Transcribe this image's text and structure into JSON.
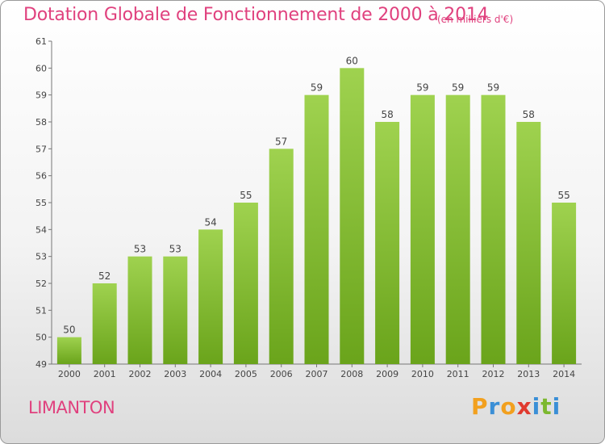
{
  "header": {
    "title": "Dotation Globale de Fonctionnement de 2000 à 2014",
    "unit": "(en milliers d'€)"
  },
  "footer": {
    "commune": "LIMANTON",
    "logo": "Proxiti"
  },
  "colors": {
    "title": "#e0417e",
    "bar_top": "#9fd24f",
    "bar_bottom": "#6aa41b",
    "axis": "#666666",
    "text": "#333333"
  },
  "chart_data": {
    "type": "bar",
    "categories": [
      "2000",
      "2001",
      "2002",
      "2003",
      "2004",
      "2005",
      "2006",
      "2007",
      "2008",
      "2009",
      "2010",
      "2011",
      "2012",
      "2013",
      "2014"
    ],
    "values": [
      50,
      52,
      53,
      53,
      54,
      55,
      57,
      59,
      60,
      58,
      59,
      59,
      59,
      58,
      55
    ],
    "ylim": [
      49,
      61
    ],
    "yticks": [
      49,
      50,
      51,
      52,
      53,
      54,
      55,
      56,
      57,
      58,
      59,
      60,
      61
    ],
    "title": "Dotation Globale de Fonctionnement de 2000 à 2014",
    "xlabel": "",
    "ylabel": "",
    "grid": false,
    "legend": "none"
  }
}
